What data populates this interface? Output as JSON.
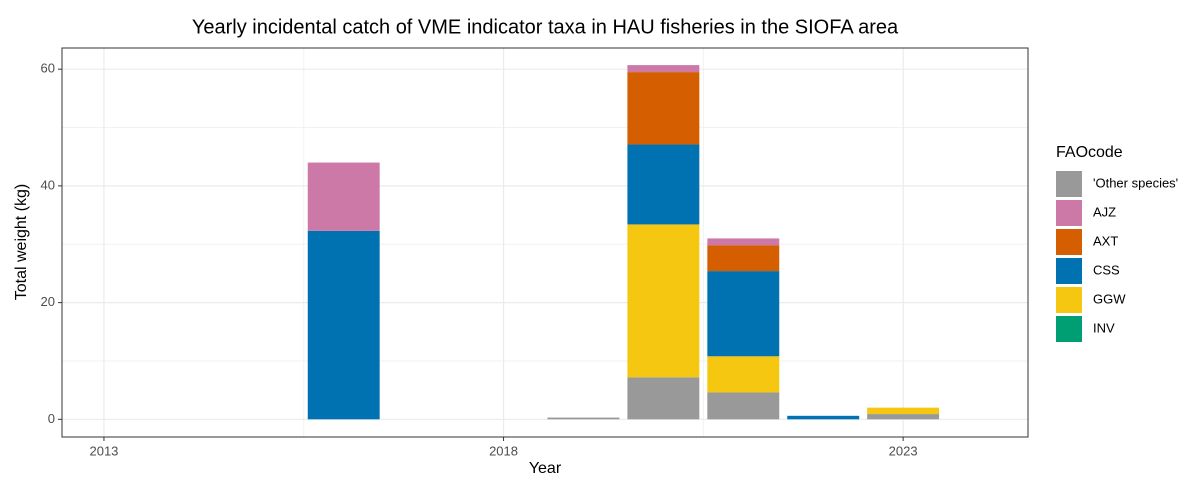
{
  "chart_data": {
    "type": "bar",
    "stacked": true,
    "title": "Yearly incidental catch of VME indicator taxa in HAU fisheries in the SIOFA area",
    "x_label": "Year",
    "y_label": "Total weight (kg)",
    "legend_title": "FAOcode",
    "legend_position": "right",
    "x": [
      2016,
      2019,
      2020,
      2021,
      2022,
      2023
    ],
    "series": [
      {
        "name": "'Other species'",
        "color": "#999999",
        "values": [
          0,
          0.3,
          7.2,
          4.6,
          0,
          0.9
        ]
      },
      {
        "name": "AJZ",
        "color": "#CC79A7",
        "values": [
          11.7,
          0,
          1.2,
          1.2,
          0,
          0
        ]
      },
      {
        "name": "AXT",
        "color": "#D55E00",
        "values": [
          0,
          0,
          12.4,
          4.4,
          0,
          0
        ]
      },
      {
        "name": "CSS",
        "color": "#0072B2",
        "values": [
          32.3,
          0,
          13.7,
          14.6,
          0.6,
          0
        ]
      },
      {
        "name": "GGW",
        "color": "#F5C710",
        "values": [
          0,
          0,
          26.2,
          6.2,
          0,
          1.1
        ]
      },
      {
        "name": "INV",
        "color": "#009E73",
        "values": [
          0,
          0,
          0,
          0,
          0,
          0
        ]
      }
    ],
    "xlim": [
      2012.475,
      2024.5625
    ],
    "xticks": [
      2013,
      2018,
      2023
    ],
    "ylim": [
      -3.03,
      63.63
    ],
    "yticks": [
      0,
      20,
      40,
      60
    ],
    "grid": true
  }
}
